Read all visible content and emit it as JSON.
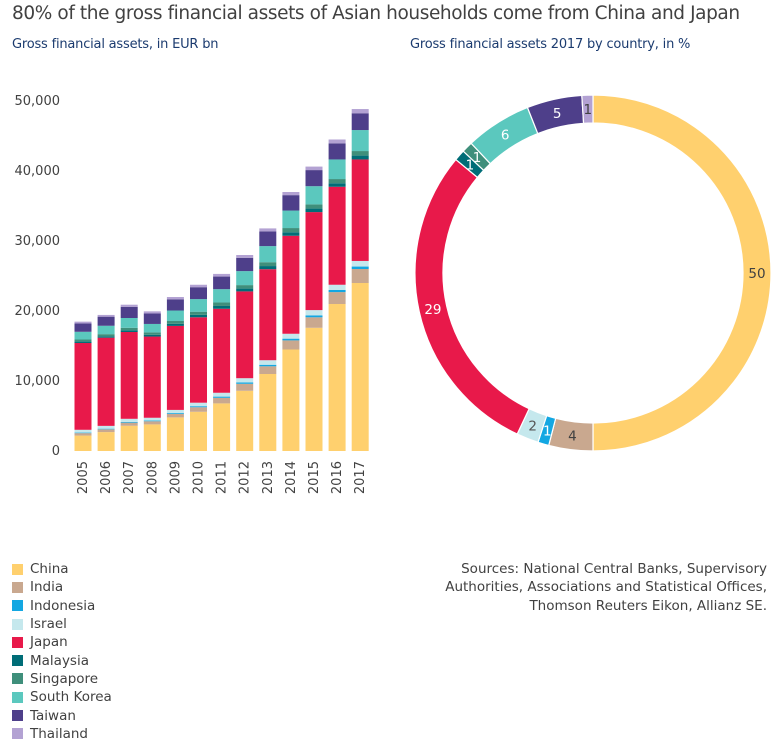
{
  "header": {
    "title": "80% of the gross financial assets of Asian households come from China and Japan",
    "subtitle_left": "Gross financial assets, in EUR bn",
    "subtitle_right": "Gross financial assets 2017 by country, in %"
  },
  "source": "Sources: National Central Banks, Supervisory Authorities, Associations and Statistical Offices, Thomson Reuters Eikon, Allianz SE.",
  "legend": [
    {
      "label": "China",
      "color": "#ffd06e"
    },
    {
      "label": "India",
      "color": "#c9a88f"
    },
    {
      "label": "Indonesia",
      "color": "#13a7e2"
    },
    {
      "label": "Israel",
      "color": "#c5e8ed"
    },
    {
      "label": "Japan",
      "color": "#e8194a"
    },
    {
      "label": "Malaysia",
      "color": "#006d77"
    },
    {
      "label": "Singapore",
      "color": "#3f8f7b"
    },
    {
      "label": "South Korea",
      "color": "#5bc8be"
    },
    {
      "label": "Taiwan",
      "color": "#4e3f8a"
    },
    {
      "label": "Thailand",
      "color": "#b3a2d3"
    }
  ],
  "chart_data": [
    {
      "type": "bar",
      "stacked": true,
      "ylim": [
        0,
        50000
      ],
      "yticks": [
        0,
        10000,
        20000,
        30000,
        40000,
        50000
      ],
      "ytick_labels": [
        "0",
        "10,000",
        "20,000",
        "30,000",
        "40,000",
        "50,000"
      ],
      "categories": [
        "2005",
        "2006",
        "2007",
        "2008",
        "2009",
        "2010",
        "2011",
        "2012",
        "2013",
        "2014",
        "2015",
        "2016",
        "2017"
      ],
      "series": [
        {
          "name": "China",
          "color": "#ffd06e",
          "values": [
            2200,
            2700,
            3600,
            3800,
            4800,
            5600,
            6800,
            8600,
            11000,
            14500,
            17600,
            21000,
            24000
          ]
        },
        {
          "name": "India",
          "color": "#c9a88f",
          "values": [
            350,
            400,
            450,
            450,
            500,
            650,
            800,
            1000,
            1100,
            1300,
            1500,
            1700,
            2000
          ]
        },
        {
          "name": "Indonesia",
          "color": "#13a7e2",
          "values": [
            80,
            90,
            100,
            100,
            120,
            150,
            170,
            200,
            220,
            250,
            280,
            300,
            350
          ]
        },
        {
          "name": "Israel",
          "color": "#c5e8ed",
          "values": [
            400,
            400,
            450,
            400,
            450,
            500,
            550,
            600,
            650,
            700,
            750,
            750,
            800
          ]
        },
        {
          "name": "Japan",
          "color": "#e8194a",
          "values": [
            12400,
            12600,
            12400,
            11600,
            12000,
            12200,
            12000,
            12400,
            13000,
            14000,
            14000,
            14000,
            14500
          ]
        },
        {
          "name": "Malaysia",
          "color": "#006d77",
          "values": [
            200,
            200,
            250,
            250,
            300,
            350,
            400,
            400,
            450,
            500,
            500,
            500,
            550
          ]
        },
        {
          "name": "Singapore",
          "color": "#3f8f7b",
          "values": [
            300,
            300,
            350,
            350,
            400,
            450,
            500,
            500,
            550,
            600,
            600,
            600,
            650
          ]
        },
        {
          "name": "South Korea",
          "color": "#5bc8be",
          "values": [
            1100,
            1200,
            1400,
            1200,
            1500,
            1800,
            1900,
            2000,
            2300,
            2500,
            2600,
            2800,
            3000
          ]
        },
        {
          "name": "Taiwan",
          "color": "#4e3f8a",
          "values": [
            1200,
            1300,
            1600,
            1500,
            1600,
            1700,
            1800,
            1900,
            2100,
            2200,
            2300,
            2300,
            2400
          ]
        },
        {
          "name": "Thailand",
          "color": "#b3a2d3",
          "values": [
            250,
            250,
            300,
            300,
            330,
            350,
            380,
            400,
            430,
            450,
            500,
            550,
            600
          ]
        }
      ]
    },
    {
      "type": "pie",
      "donut": true,
      "slices": [
        {
          "name": "China",
          "value": 50,
          "label": "50",
          "color": "#ffd06e"
        },
        {
          "name": "India",
          "value": 4,
          "label": "4",
          "color": "#c9a88f"
        },
        {
          "name": "Indonesia",
          "value": 1,
          "label": "1",
          "color": "#13a7e2"
        },
        {
          "name": "Israel",
          "value": 2,
          "label": "2",
          "color": "#c5e8ed"
        },
        {
          "name": "Japan",
          "value": 29,
          "label": "29",
          "color": "#e8194a"
        },
        {
          "name": "Malaysia",
          "value": 1,
          "label": "1",
          "color": "#006d77"
        },
        {
          "name": "Singapore",
          "value": 1,
          "label": "1",
          "color": "#3f8f7b"
        },
        {
          "name": "South Korea",
          "value": 6,
          "label": "6",
          "color": "#5bc8be"
        },
        {
          "name": "Taiwan",
          "value": 5,
          "label": "5",
          "color": "#4e3f8a"
        },
        {
          "name": "Thailand",
          "value": 1,
          "label": "1",
          "color": "#b3a2d3"
        }
      ]
    }
  ]
}
